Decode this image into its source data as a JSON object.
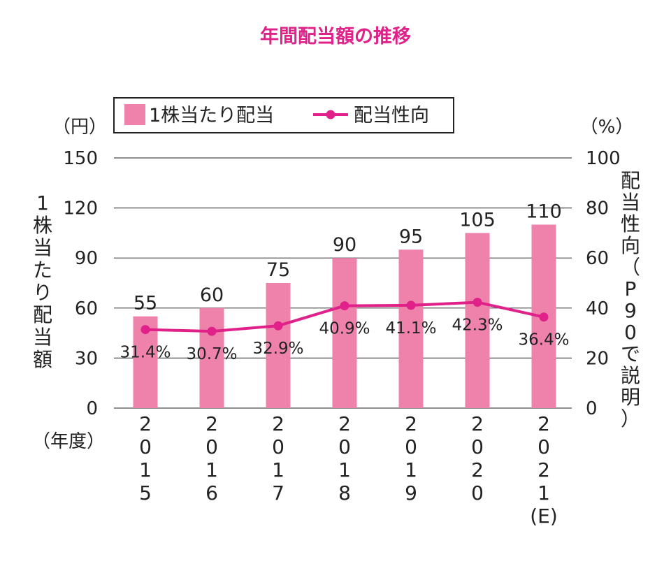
{
  "title": "年間配当額の推移",
  "title_color": "#e0218a",
  "chart_data": {
    "type": "bar",
    "categories": [
      "2015",
      "2016",
      "2017",
      "2018",
      "2019",
      "2020",
      "2021(E)"
    ],
    "x_tick_labels": [
      [
        "2",
        "0",
        "1",
        "5"
      ],
      [
        "2",
        "0",
        "1",
        "6"
      ],
      [
        "2",
        "0",
        "1",
        "7"
      ],
      [
        "2",
        "0",
        "1",
        "8"
      ],
      [
        "2",
        "0",
        "1",
        "9"
      ],
      [
        "2",
        "0",
        "2",
        "0"
      ],
      [
        "2",
        "0",
        "2",
        "1",
        "(E)"
      ]
    ],
    "series": [
      {
        "name": "1株当たり配当",
        "type": "bar",
        "axis": "left",
        "color": "#ee82ab",
        "values": [
          55,
          60,
          75,
          90,
          95,
          105,
          110
        ],
        "labels": [
          "55",
          "60",
          "75",
          "90",
          "95",
          "105",
          "110"
        ]
      },
      {
        "name": "配当性向",
        "type": "line",
        "axis": "right",
        "color": "#e0218a",
        "values": [
          31.4,
          30.7,
          32.9,
          40.9,
          41.1,
          42.3,
          36.4
        ],
        "labels": [
          "31.4%",
          "30.7%",
          "32.9%",
          "40.9%",
          "41.1%",
          "42.3%",
          "36.4%"
        ]
      }
    ],
    "y_left": {
      "ylim": [
        0,
        150
      ],
      "ticks": [
        0,
        30,
        60,
        90,
        120,
        150
      ],
      "unit": "（円）",
      "label": "1株当たり配当額"
    },
    "y_right": {
      "ylim": [
        0,
        100
      ],
      "ticks": [
        0,
        20,
        40,
        60,
        80,
        100
      ],
      "unit": "（%）",
      "label": "配当性向（P90で説明）"
    },
    "x_unit": "（年度）",
    "grid": true,
    "legend": "top"
  }
}
